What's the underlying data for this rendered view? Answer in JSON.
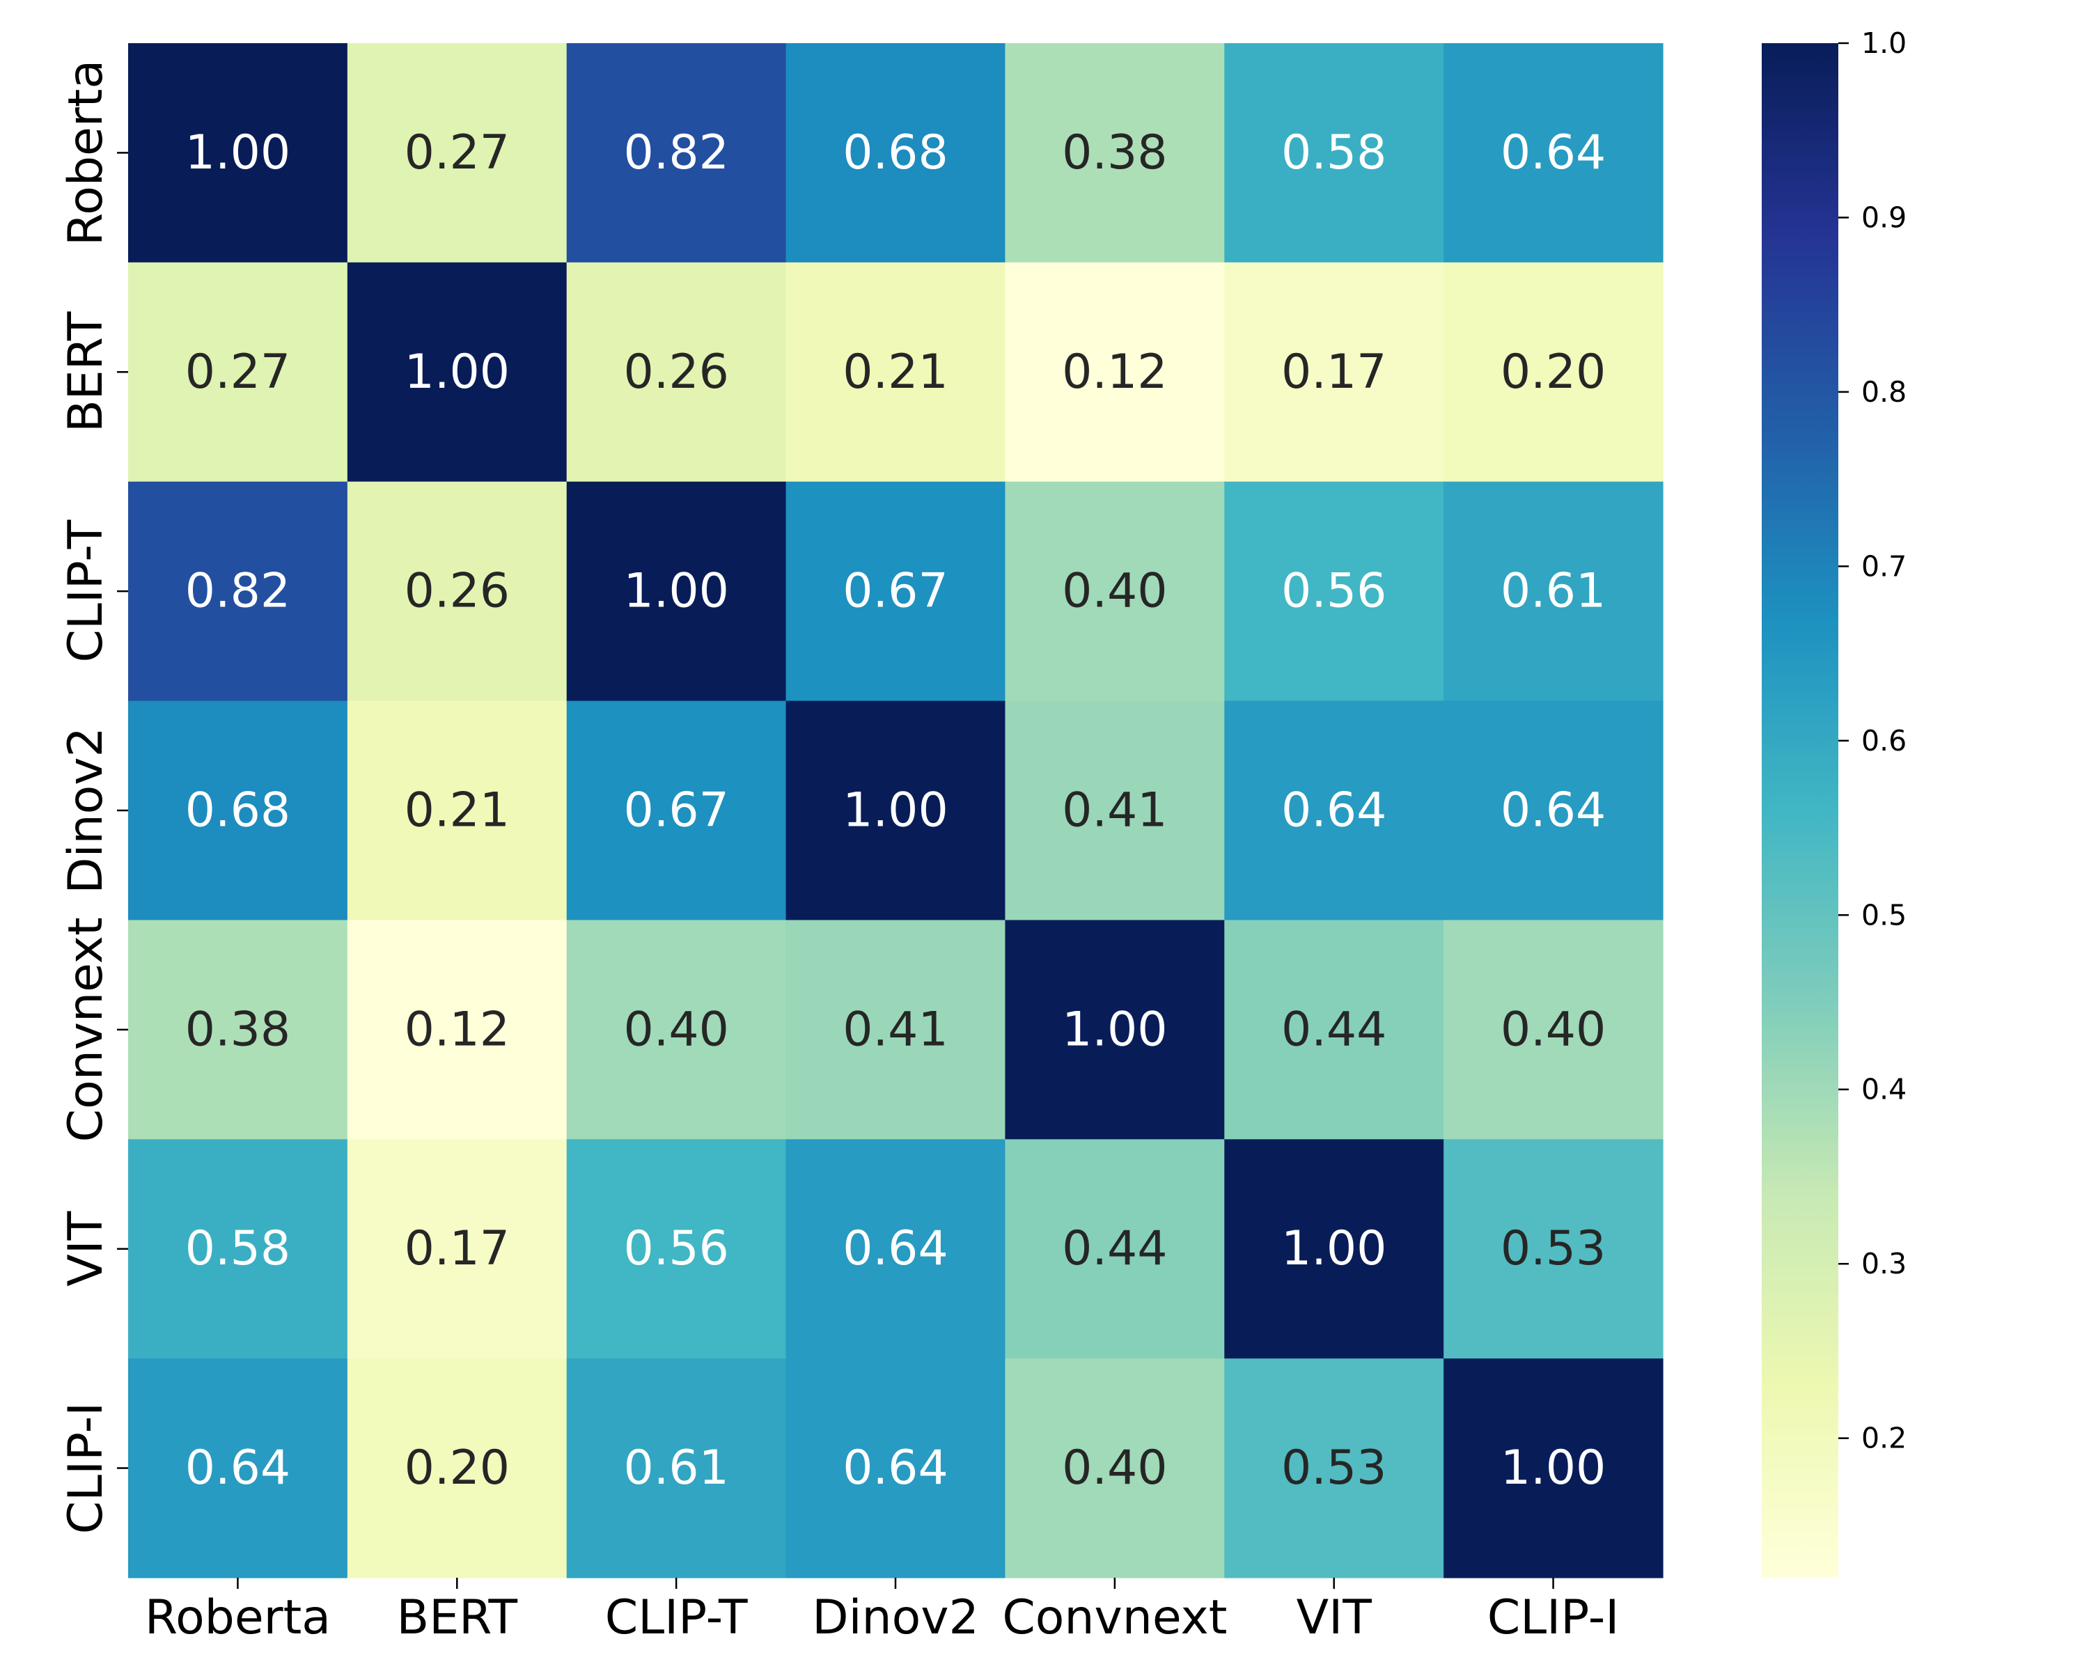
{
  "chart_data": {
    "type": "heatmap",
    "title": "",
    "xlabel": "",
    "ylabel": "",
    "x_labels": [
      "Roberta",
      "BERT",
      "CLIP-T",
      "Dinov2",
      "Convnext",
      "VIT",
      "CLIP-I"
    ],
    "y_labels": [
      "Roberta",
      "BERT",
      "CLIP-T",
      "Dinov2",
      "Convnext",
      "VIT",
      "CLIP-I"
    ],
    "values": [
      [
        1.0,
        0.27,
        0.82,
        0.68,
        0.38,
        0.58,
        0.64
      ],
      [
        0.27,
        1.0,
        0.26,
        0.21,
        0.12,
        0.17,
        0.2
      ],
      [
        0.82,
        0.26,
        1.0,
        0.67,
        0.4,
        0.56,
        0.61
      ],
      [
        0.68,
        0.21,
        0.67,
        1.0,
        0.41,
        0.64,
        0.64
      ],
      [
        0.38,
        0.12,
        0.4,
        0.41,
        1.0,
        0.44,
        0.4
      ],
      [
        0.58,
        0.17,
        0.56,
        0.64,
        0.44,
        1.0,
        0.53
      ],
      [
        0.64,
        0.2,
        0.61,
        0.64,
        0.4,
        0.53,
        1.0
      ]
    ],
    "annotation_format": "0.00",
    "colormap": "YlGnBu",
    "colormap_stops": [
      "#ffffd9",
      "#edf8b1",
      "#c7e9b4",
      "#7fcdbb",
      "#41b6c4",
      "#1d91c0",
      "#225ea8",
      "#253494",
      "#081d58"
    ],
    "vmin": 0.12,
    "vmax": 1.0,
    "colorbar": {
      "ticks": [
        0.2,
        0.3,
        0.4,
        0.5,
        0.6,
        0.7,
        0.8,
        0.9,
        1.0
      ],
      "tick_labels": [
        "0.2",
        "0.3",
        "0.4",
        "0.5",
        "0.6",
        "0.7",
        "0.8",
        "0.9",
        "1.0"
      ],
      "placement": "right"
    },
    "annotation_colors": {
      "dark": "#262626",
      "light": "#ffffff"
    },
    "grid": false
  }
}
